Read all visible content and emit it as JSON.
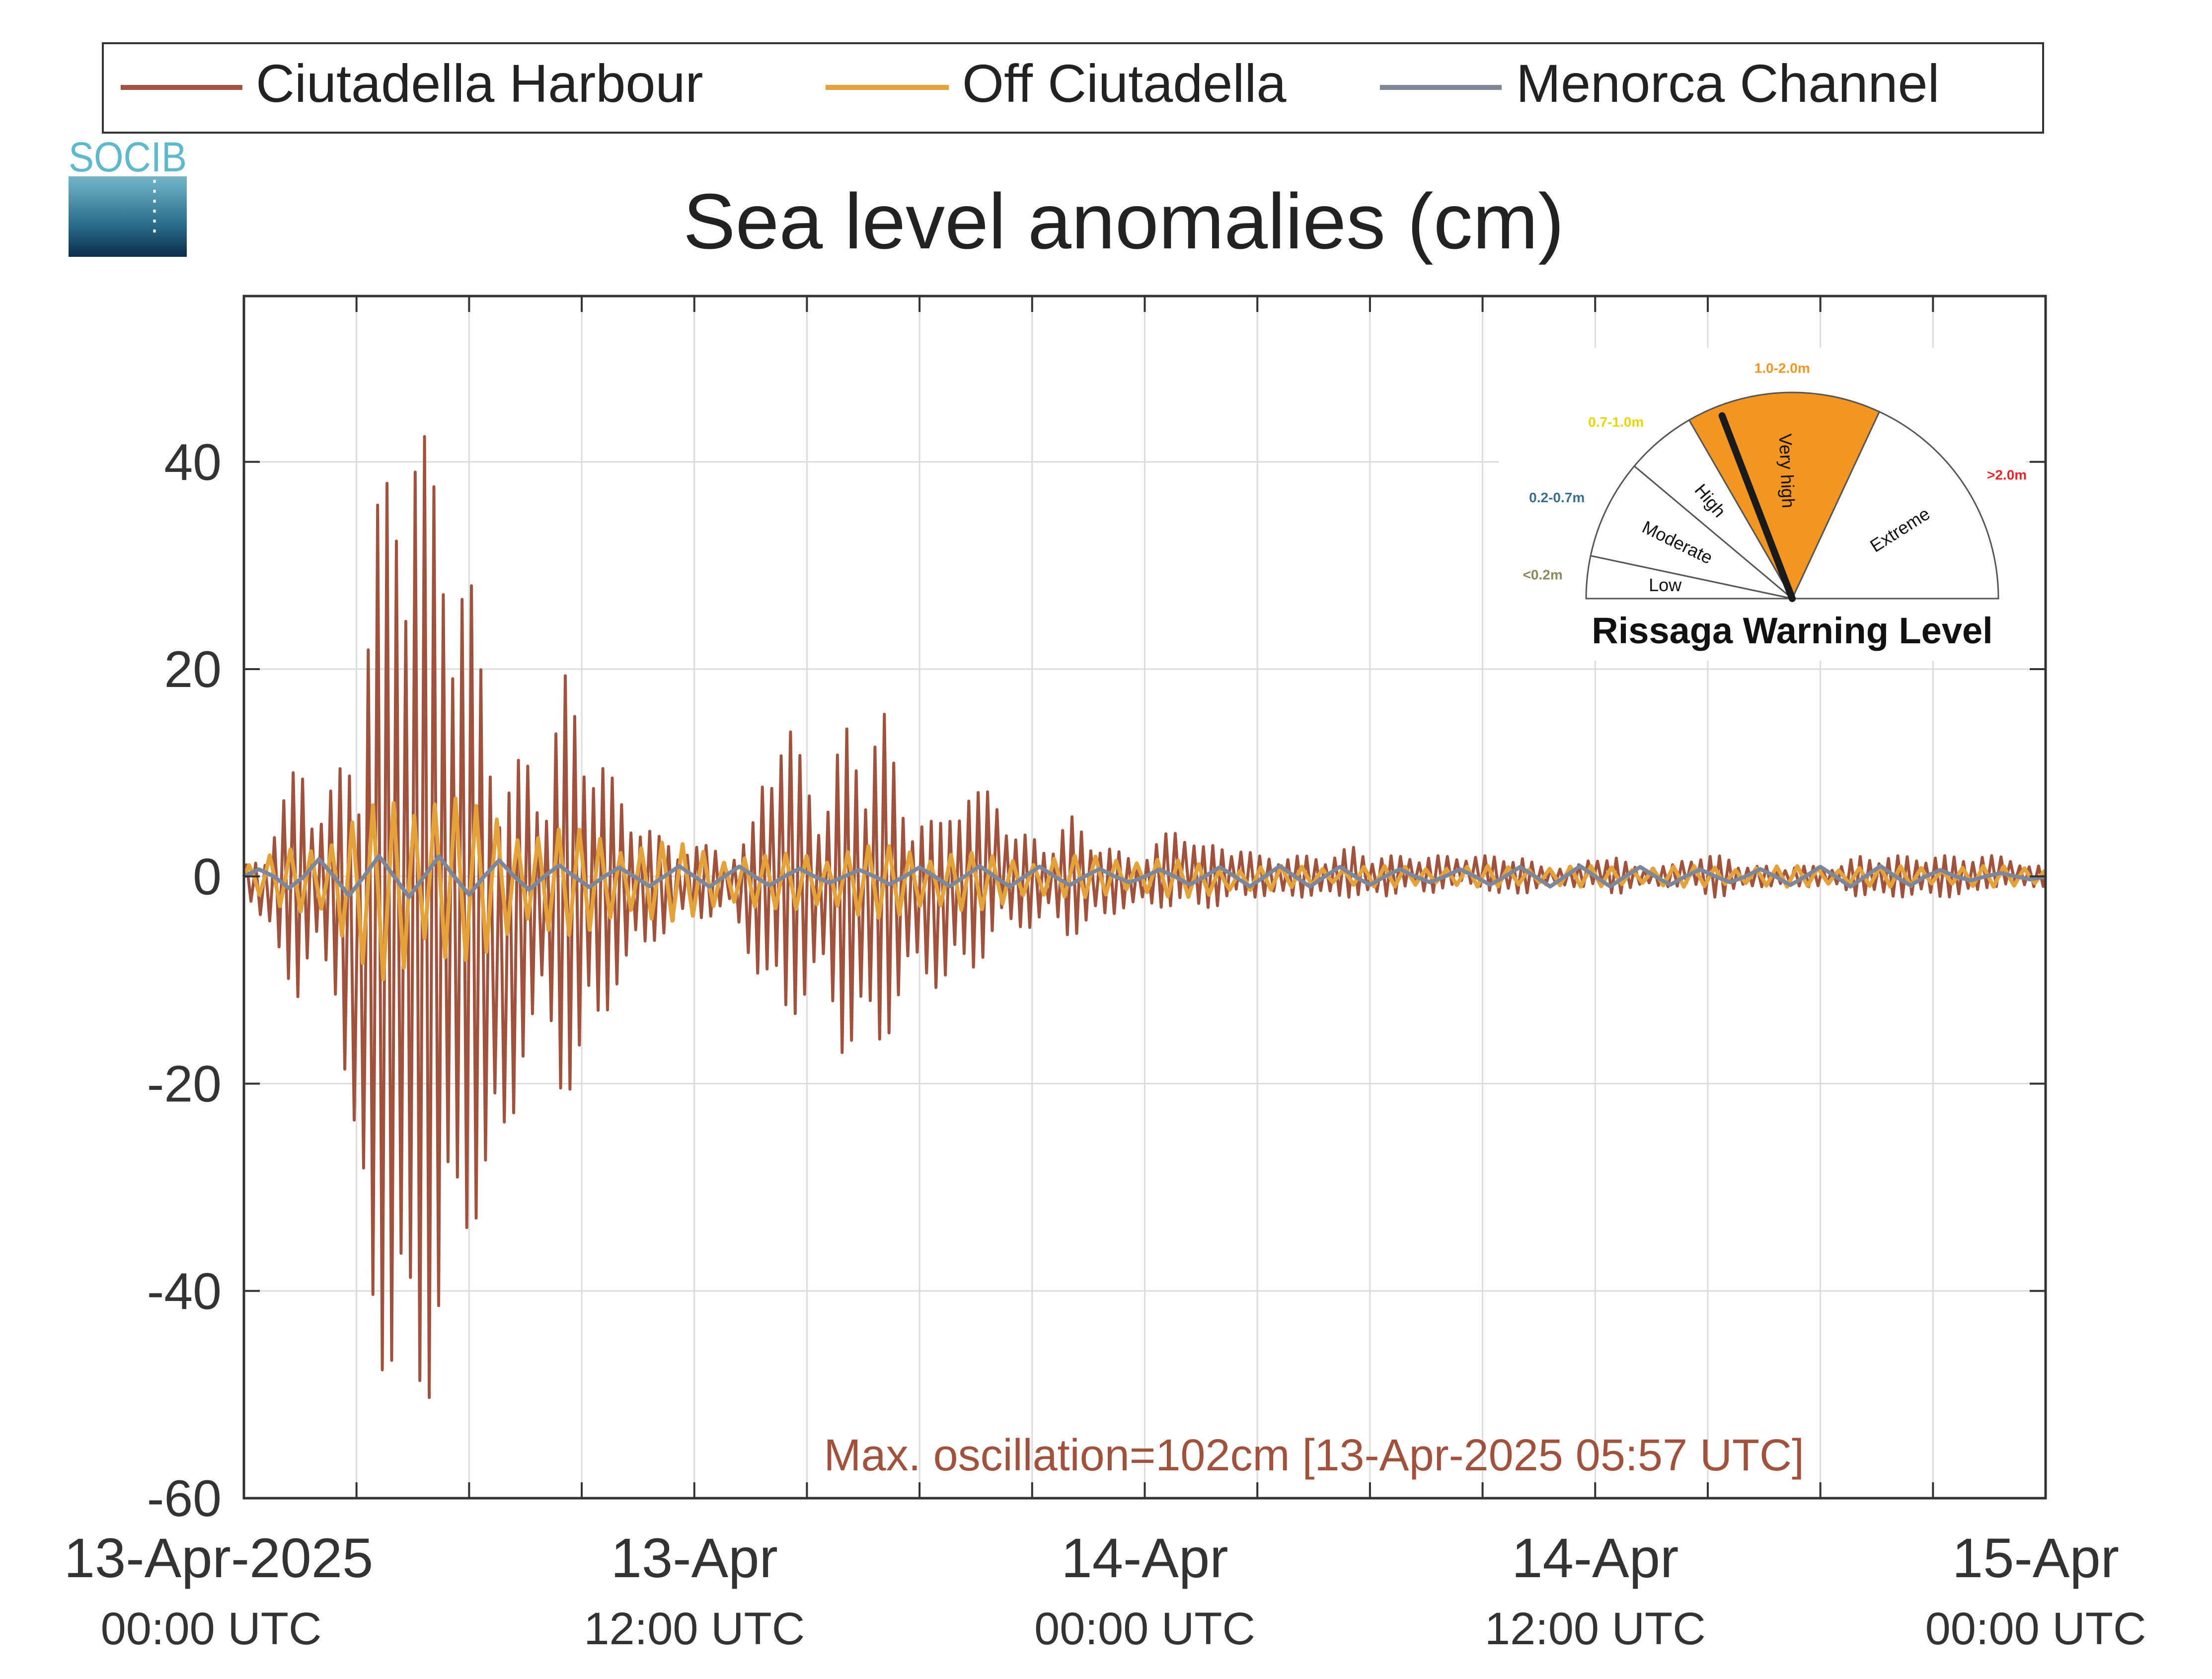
{
  "logo_text": "SOCIB",
  "colors": {
    "harbour": "#a0523d",
    "off": "#e3a23a",
    "channel": "#7d8799",
    "grid": "#dcdcdc",
    "axis": "#333333",
    "annotation": "#a0523d",
    "gauge_orange": "#f39521"
  },
  "chart_data": {
    "type": "line",
    "title": "Sea level anomalies (cm)",
    "xlabel": "",
    "ylabel": "",
    "ylim": [
      -60,
      56
    ],
    "xlim_hours": [
      0,
      48
    ],
    "grid": true,
    "legend_position": "top",
    "yticks": [
      40,
      20,
      0,
      -20,
      -40,
      -60
    ],
    "ytick_labels": [
      "40",
      "20",
      "0",
      "-20",
      "-40",
      "-60"
    ],
    "xticks": [
      {
        "hour": 0,
        "date": "13-Apr-2025",
        "time": "00:00 UTC"
      },
      {
        "hour": 12,
        "date": "13-Apr",
        "time": "12:00 UTC"
      },
      {
        "hour": 24,
        "date": "14-Apr",
        "time": "00:00 UTC"
      },
      {
        "hour": 36,
        "date": "14-Apr",
        "time": "12:00 UTC"
      },
      {
        "hour": 48,
        "date": "15-Apr",
        "time": "00:00 UTC"
      }
    ],
    "series": [
      {
        "name": "Ciutadella Harbour",
        "color": "#a0523d",
        "x_hours": [
          0,
          0.5,
          1,
          1.5,
          2,
          2.5,
          3,
          3.5,
          4,
          4.5,
          5,
          5.5,
          6,
          6.5,
          7,
          7.5,
          8,
          8.5,
          9,
          9.5,
          10,
          10.5,
          11,
          11.5,
          12,
          12.5,
          13,
          13.5,
          14,
          14.5,
          15,
          15.5,
          16,
          16.5,
          17,
          17.5,
          18,
          18.5,
          19,
          19.5,
          20,
          20.5,
          21,
          21.5,
          22,
          22.5,
          23,
          23.5,
          24,
          24.5,
          25,
          25.5,
          26,
          26.5,
          27,
          27.5,
          28,
          28.5,
          29,
          29.5,
          30,
          30.5,
          31,
          31.5,
          32,
          32.5,
          33,
          33.5,
          34,
          34.5,
          35,
          35.5,
          36,
          36.5,
          37,
          37.5,
          38,
          38.5,
          39,
          39.5,
          40,
          40.5,
          41,
          41.5,
          42,
          42.5,
          43,
          43.5,
          44,
          44.5,
          45,
          45.5,
          46,
          46.5,
          47,
          47.5,
          48
        ],
        "upper": [
          1,
          2,
          7,
          12,
          6,
          10,
          15,
          36,
          41,
          48,
          40,
          34,
          30,
          16,
          10,
          12,
          8,
          20,
          15,
          12,
          8,
          6,
          4,
          3,
          3,
          3,
          2,
          4,
          14,
          15,
          10,
          7,
          15,
          12,
          17,
          8,
          6,
          5,
          9,
          8,
          9,
          4,
          4,
          3,
          6,
          4,
          3,
          2,
          2,
          4,
          5,
          3,
          3,
          3,
          2,
          2,
          2,
          2,
          2,
          3,
          2,
          2,
          2,
          2,
          2,
          2,
          2,
          2,
          2,
          1,
          1,
          1,
          2,
          2,
          1,
          1,
          1,
          2,
          2,
          2,
          1,
          1,
          1,
          1,
          1,
          1,
          2,
          2,
          2,
          2,
          2,
          2,
          2,
          2,
          2,
          1,
          1
        ],
        "lower": [
          -1,
          -5,
          -8,
          -13,
          -7,
          -12,
          -33,
          -45,
          -52,
          -53,
          -50,
          -40,
          -35,
          -30,
          -28,
          -16,
          -14,
          -22,
          -19,
          -15,
          -10,
          -8,
          -6,
          -5,
          -4,
          -4,
          -3,
          -8,
          -13,
          -14,
          -12,
          -10,
          -18,
          -16,
          -17,
          -12,
          -9,
          -11,
          -10,
          -9,
          -6,
          -5,
          -5,
          -4,
          -6,
          -5,
          -4,
          -3,
          -3,
          -3,
          -3,
          -3,
          -3,
          -2,
          -2,
          -2,
          -2,
          -2,
          -2,
          -2,
          -2,
          -2,
          -1,
          -2,
          -1,
          -1,
          -1,
          -2,
          -2,
          -1,
          -1,
          -1,
          -1,
          -2,
          -1,
          -1,
          -1,
          -1,
          -2,
          -2,
          -1,
          -1,
          -1,
          -1,
          -1,
          -1,
          -2,
          -2,
          -2,
          -2,
          -2,
          -2,
          -2,
          -1,
          -1,
          -1,
          -1
        ]
      },
      {
        "name": "Off Ciutadella",
        "color": "#e3a23a",
        "x_hours": [
          0,
          2,
          4,
          5,
          6,
          7,
          8,
          10,
          12,
          14,
          16,
          18,
          20,
          22,
          24,
          26,
          28,
          30,
          32,
          34,
          36,
          38,
          40,
          42,
          44,
          46,
          48
        ],
        "upper": [
          1,
          4,
          8,
          10,
          7,
          6,
          5,
          4,
          3,
          2,
          3,
          3,
          2,
          2,
          2,
          1,
          1,
          1,
          1,
          1,
          1,
          1,
          1,
          1,
          1,
          1,
          1
        ],
        "lower": [
          -1,
          -5,
          -11,
          -10,
          -8,
          -7,
          -6,
          -5,
          -4,
          -3,
          -4,
          -4,
          -3,
          -2,
          -2,
          -2,
          -1,
          -1,
          -1,
          -1,
          -1,
          -1,
          -1,
          -1,
          -1,
          -1,
          -1
        ]
      },
      {
        "name": "Menorca Channel",
        "color": "#7d8799",
        "x_hours": [
          0,
          2,
          4,
          6,
          8,
          10,
          12,
          14,
          16,
          18,
          20,
          22,
          24,
          26,
          28,
          30,
          32,
          34,
          36,
          38,
          40,
          42,
          44,
          46,
          48
        ],
        "upper": [
          1,
          2,
          2,
          2,
          2,
          1,
          1,
          1,
          1,
          1,
          1,
          1,
          1,
          1,
          1,
          1,
          1,
          1,
          1,
          1,
          1,
          1,
          1,
          0.5,
          0.5
        ],
        "lower": [
          -1,
          -2,
          -2,
          -2,
          -2,
          -1,
          -1,
          -1,
          -1,
          -1,
          -1,
          -1,
          -1,
          -1,
          -1,
          -1,
          -1,
          -1,
          -1,
          -1,
          -1,
          -1,
          -1,
          -0.5,
          -0.5
        ]
      }
    ],
    "annotation": "Max. oscillation=102cm [13-Apr-2025 05:57 UTC]"
  },
  "gauge": {
    "title": "Rissaga Warning Level",
    "sectors": [
      {
        "label": "Low",
        "range": "<0.2m",
        "range_color": "#8a8a5a",
        "filled": false
      },
      {
        "label": "Moderate",
        "range": "0.2-0.7m",
        "range_color": "#3d6f8a",
        "filled": false
      },
      {
        "label": "High",
        "range": "0.7-1.0m",
        "range_color": "#e8d600",
        "filled": false
      },
      {
        "label": "Very high",
        "range": "1.0-2.0m",
        "range_color": "#f39521",
        "filled": true
      },
      {
        "label": "Extreme",
        "range": ">2.0m",
        "range_color": "#e0282c",
        "filled": false
      }
    ],
    "needle_angle_deg": 111
  }
}
